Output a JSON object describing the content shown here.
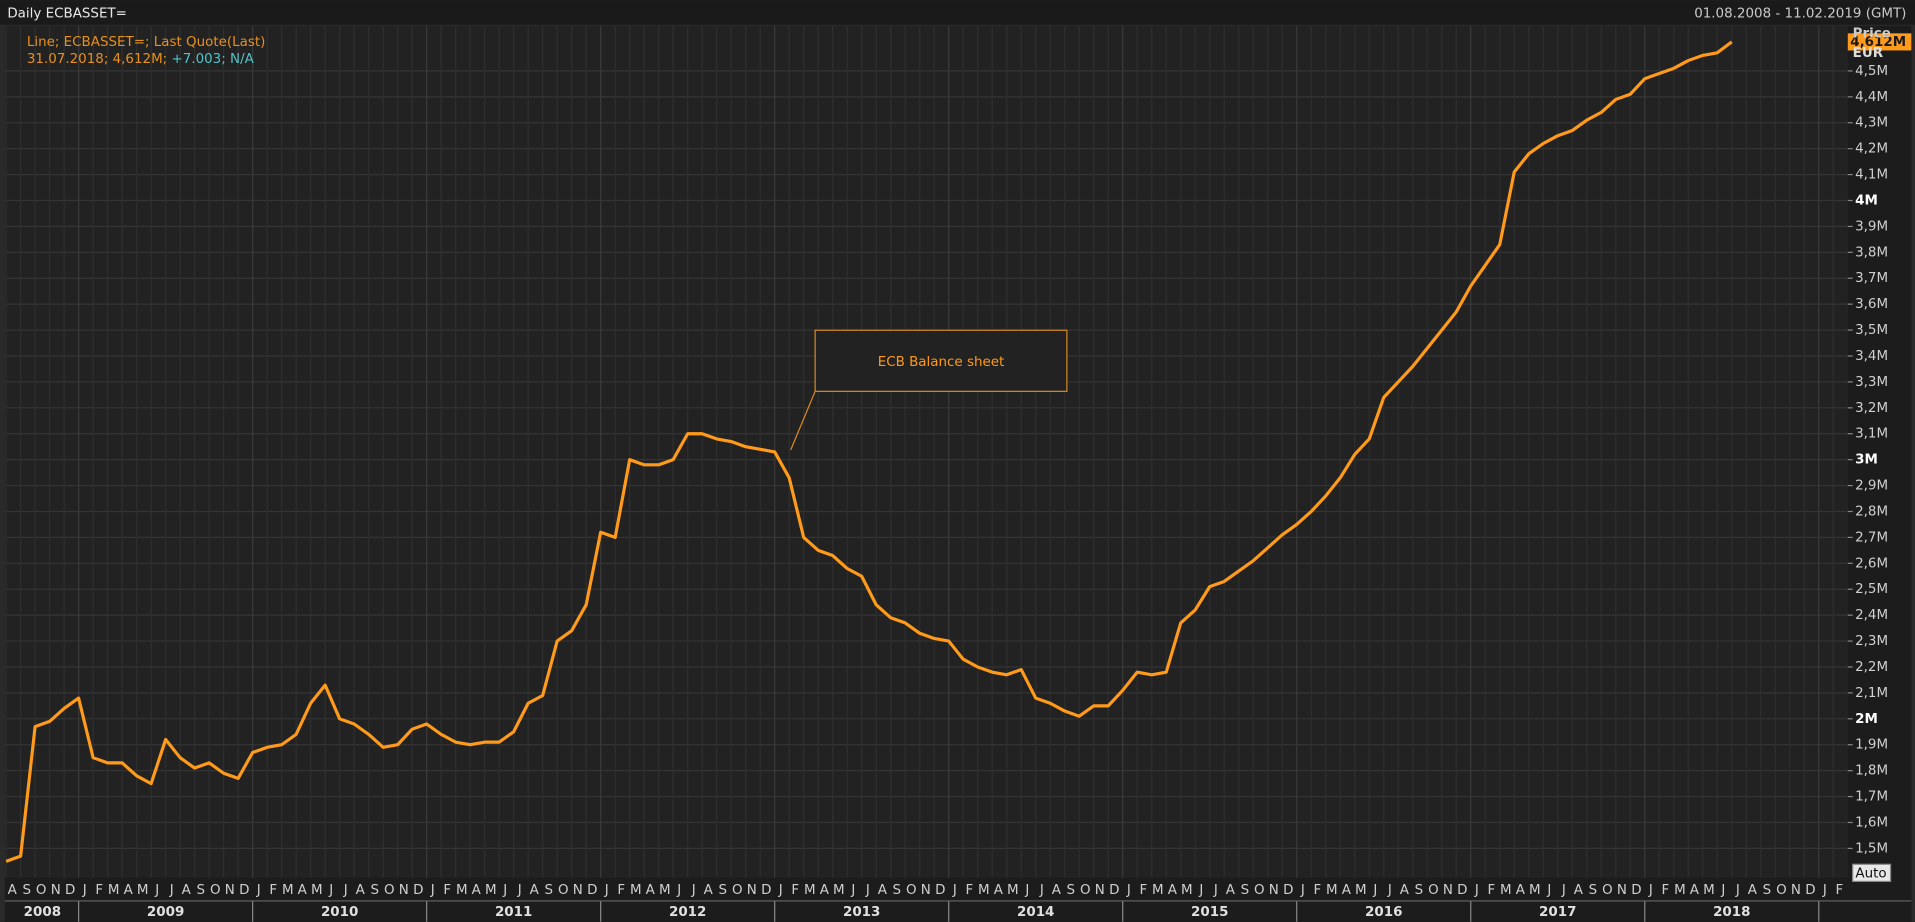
{
  "header": {
    "title": "Daily ECBASSET=",
    "date_range": "01.08.2008 - 11.02.2019 (GMT)"
  },
  "legend": {
    "line1": "Line; ECBASSET=; Last Quote(Last)",
    "line2_a": "31.07.2018; 4,612M;",
    "line2_b": "+7.003; N/A"
  },
  "axis_unit": {
    "top": "Price",
    "bottom": "EUR"
  },
  "auto_button": "Auto",
  "chart_data": {
    "type": "line",
    "annotation": "ECB Balance sheet",
    "years": [
      "2008",
      "2009",
      "2010",
      "2011",
      "2012",
      "2013",
      "2014",
      "2015",
      "2016",
      "2017",
      "2018"
    ],
    "month_letters": [
      "J",
      "F",
      "M",
      "A",
      "M",
      "J",
      "J",
      "A",
      "S",
      "O",
      "N",
      "D"
    ],
    "xlim": [
      "2008-08",
      "2019-03"
    ],
    "ylim": [
      1400000,
      4650000
    ],
    "yticks": [
      {
        "value": 1500000,
        "label": "1,5M"
      },
      {
        "value": 1600000,
        "label": "1,6M"
      },
      {
        "value": 1700000,
        "label": "1,7M"
      },
      {
        "value": 1800000,
        "label": "1,8M"
      },
      {
        "value": 1900000,
        "label": "1,9M"
      },
      {
        "value": 2000000,
        "label": "2M"
      },
      {
        "value": 2100000,
        "label": "2,1M"
      },
      {
        "value": 2200000,
        "label": "2,2M"
      },
      {
        "value": 2300000,
        "label": "2,3M"
      },
      {
        "value": 2400000,
        "label": "2,4M"
      },
      {
        "value": 2500000,
        "label": "2,5M"
      },
      {
        "value": 2600000,
        "label": "2,6M"
      },
      {
        "value": 2700000,
        "label": "2,7M"
      },
      {
        "value": 2800000,
        "label": "2,8M"
      },
      {
        "value": 2900000,
        "label": "2,9M"
      },
      {
        "value": 3000000,
        "label": "3M"
      },
      {
        "value": 3100000,
        "label": "3,1M"
      },
      {
        "value": 3200000,
        "label": "3,2M"
      },
      {
        "value": 3300000,
        "label": "3,3M"
      },
      {
        "value": 3400000,
        "label": "3,4M"
      },
      {
        "value": 3500000,
        "label": "3,5M"
      },
      {
        "value": 3600000,
        "label": "3,6M"
      },
      {
        "value": 3700000,
        "label": "3,7M"
      },
      {
        "value": 3800000,
        "label": "3,8M"
      },
      {
        "value": 3900000,
        "label": "3,9M"
      },
      {
        "value": 4000000,
        "label": "4M"
      },
      {
        "value": 4100000,
        "label": "4,1M"
      },
      {
        "value": 4200000,
        "label": "4,2M"
      },
      {
        "value": 4300000,
        "label": "4,3M"
      },
      {
        "value": 4400000,
        "label": "4,4M"
      },
      {
        "value": 4500000,
        "label": "4,5M"
      }
    ],
    "grid": true,
    "series": [
      {
        "name": "ECBASSET=",
        "color": "#ff9a1a",
        "x": [
          "2008-08",
          "2008-09",
          "2008-10",
          "2008-11",
          "2008-12",
          "2009-01",
          "2009-02",
          "2009-03",
          "2009-04",
          "2009-05",
          "2009-06",
          "2009-07",
          "2009-08",
          "2009-09",
          "2009-10",
          "2009-11",
          "2009-12",
          "2010-01",
          "2010-02",
          "2010-03",
          "2010-04",
          "2010-05",
          "2010-06",
          "2010-07",
          "2010-08",
          "2010-09",
          "2010-10",
          "2010-11",
          "2010-12",
          "2011-01",
          "2011-02",
          "2011-03",
          "2011-04",
          "2011-05",
          "2011-06",
          "2011-07",
          "2011-08",
          "2011-09",
          "2011-10",
          "2011-11",
          "2011-12",
          "2012-01",
          "2012-02",
          "2012-03",
          "2012-04",
          "2012-05",
          "2012-06",
          "2012-07",
          "2012-08",
          "2012-09",
          "2012-10",
          "2012-11",
          "2012-12",
          "2013-01",
          "2013-02",
          "2013-03",
          "2013-04",
          "2013-05",
          "2013-06",
          "2013-07",
          "2013-08",
          "2013-09",
          "2013-10",
          "2013-11",
          "2013-12",
          "2014-01",
          "2014-02",
          "2014-03",
          "2014-04",
          "2014-05",
          "2014-06",
          "2014-07",
          "2014-08",
          "2014-09",
          "2014-10",
          "2014-11",
          "2014-12",
          "2015-01",
          "2015-02",
          "2015-03",
          "2015-04",
          "2015-05",
          "2015-06",
          "2015-07",
          "2015-08",
          "2015-09",
          "2015-10",
          "2015-11",
          "2015-12",
          "2016-01",
          "2016-02",
          "2016-03",
          "2016-04",
          "2016-05",
          "2016-06",
          "2016-07",
          "2016-08",
          "2016-09",
          "2016-10",
          "2016-11",
          "2016-12",
          "2017-01",
          "2017-02",
          "2017-03",
          "2017-04",
          "2017-05",
          "2017-06",
          "2017-07",
          "2017-08",
          "2017-09",
          "2017-10",
          "2017-11",
          "2017-12",
          "2018-01",
          "2018-02",
          "2018-03",
          "2018-04",
          "2018-05",
          "2018-06",
          "2018-07"
        ],
        "values": [
          1450000,
          1470000,
          1970000,
          1990000,
          2040000,
          2080000,
          1850000,
          1830000,
          1830000,
          1780000,
          1750000,
          1920000,
          1850000,
          1810000,
          1830000,
          1790000,
          1770000,
          1870000,
          1890000,
          1900000,
          1940000,
          2060000,
          2130000,
          2000000,
          1980000,
          1940000,
          1890000,
          1900000,
          1960000,
          1980000,
          1940000,
          1910000,
          1900000,
          1910000,
          1910000,
          1950000,
          2060000,
          2090000,
          2300000,
          2340000,
          2440000,
          2720000,
          2700000,
          3000000,
          2980000,
          2980000,
          3000000,
          3100000,
          3100000,
          3080000,
          3070000,
          3050000,
          3040000,
          3030000,
          2930000,
          2700000,
          2650000,
          2630000,
          2580000,
          2550000,
          2440000,
          2390000,
          2370000,
          2330000,
          2310000,
          2300000,
          2230000,
          2200000,
          2180000,
          2170000,
          2190000,
          2080000,
          2060000,
          2030000,
          2010000,
          2050000,
          2050000,
          2110000,
          2180000,
          2170000,
          2180000,
          2370000,
          2420000,
          2510000,
          2530000,
          2570000,
          2610000,
          2660000,
          2710000,
          2750000,
          2800000,
          2860000,
          2930000,
          3020000,
          3080000,
          3240000,
          3300000,
          3360000,
          3430000,
          3500000,
          3570000,
          3670000,
          3750000,
          3830000,
          4110000,
          4180000,
          4220000,
          4250000,
          4270000,
          4310000,
          4340000,
          4390000,
          4410000,
          4470000,
          4490000,
          4510000,
          4540000,
          4560000,
          4570000,
          4612000
        ],
        "last_value_label": "4,612M"
      }
    ]
  }
}
